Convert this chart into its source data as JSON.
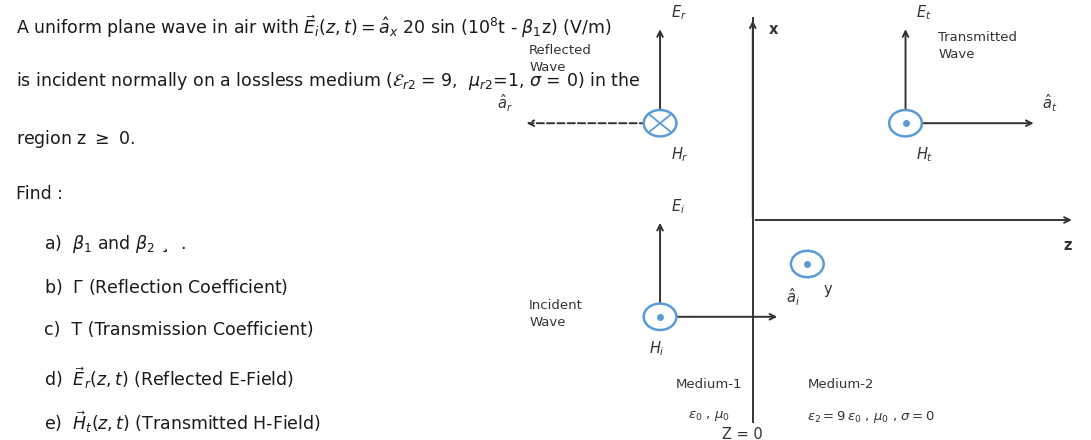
{
  "bg_color": "#ffffff",
  "text_color": "#1a1a1a",
  "diagram_color": "#333333",
  "circle_color": "#5b9bd5",
  "title_line1": "A uniform plane wave in air with $\\vec{E}_i(z, t) = \\hat{a}_x$ 20 sin (10$^8$t - $\\beta_1$z) (V/m)",
  "title_line2": "is incident normally on a lossless medium ($\\mathcal{E}_{r2}$ = 9,  $\\mu_{r2}$=1, $\\sigma$ = 0) in the",
  "title_line3": "region z $\\geq$ 0.",
  "find_label": "Find :",
  "item_a": "a)  $\\beta_1$ and $\\beta_2$ ¸  .",
  "item_b": "b)  $\\Gamma$ (Reflection Coefficient)",
  "item_c": "c)  T (Transmission Coefficient)",
  "item_d": "d)  $\\vec{E}_r(z,t)$ (Reflected E-Field)",
  "item_e": "e)  $\\vec{H}_t(z,t)$ (Transmitted H-Field)",
  "label_reflected": "Reflected\nWave",
  "label_transmitted": "Transmitted\nWave",
  "label_incident": "Incident\nWave",
  "label_medium1": "Medium-1",
  "label_medium1_sub": "$\\varepsilon_0$ , $\\mu_0$",
  "label_medium2": "Medium-2",
  "label_medium2_sub": "$\\varepsilon_2 = 9\\,\\varepsilon_0$ , $\\mu_0$ , $\\sigma = 0$",
  "label_z0": "Z = 0",
  "label_x": "x",
  "label_z": "z",
  "label_y": "y",
  "label_Er": "$E_r$",
  "label_Hr": "$H_r$",
  "label_ar": "$\\hat{a}_r$",
  "label_Et": "$E_t$",
  "label_Ht": "$H_t$",
  "label_at": "$\\hat{a}_t$",
  "label_Ei": "$E_i$",
  "label_Hi": "$H_i$",
  "label_ai": "$\\hat{a}_i$",
  "font_main": 12.5,
  "font_diagram": 10.5,
  "font_label": 9.5
}
